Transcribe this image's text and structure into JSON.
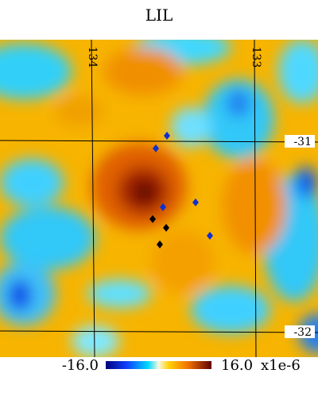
{
  "title": "LIL",
  "graticule": {
    "longitude_labels": [
      "134",
      "133"
    ],
    "latitude_labels": [
      "-31",
      "-32"
    ]
  },
  "colorbar": {
    "min_label": "-16.0",
    "max_label": "16.0",
    "unit": "x1e-6"
  }
}
